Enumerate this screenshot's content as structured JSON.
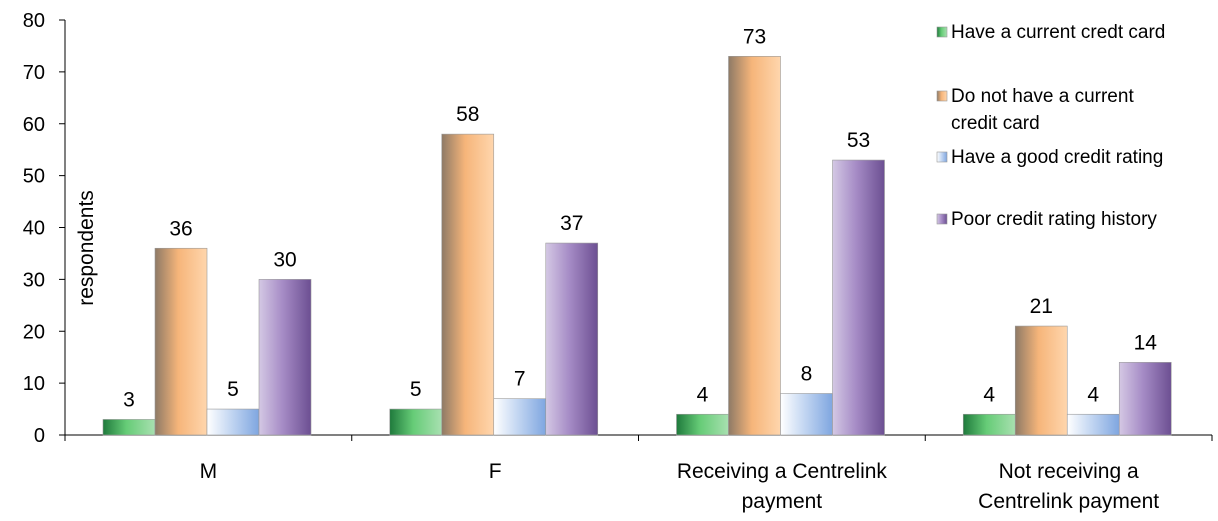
{
  "chart_data": {
    "type": "bar",
    "ylabel": "respondents",
    "xlabel": "",
    "ylim": [
      0,
      80
    ],
    "yticks": [
      0,
      10,
      20,
      30,
      40,
      50,
      60,
      70,
      80
    ],
    "categories": [
      [
        "M"
      ],
      [
        "F"
      ],
      [
        "Receiving a Centrelink",
        "payment"
      ],
      [
        "Not receiving a",
        "Centrelink payment"
      ]
    ],
    "series": [
      {
        "name": [
          "Have a current credt card"
        ],
        "values": [
          3,
          5,
          4,
          4
        ],
        "colors": [
          "#1f7a3c",
          "#66cc77",
          "#a8e0b0"
        ]
      },
      {
        "name": [
          "Do not have a current",
          "credit card"
        ],
        "values": [
          36,
          58,
          73,
          21
        ],
        "colors": [
          "#8e7a66",
          "#f6b57a",
          "#ffd6ad"
        ]
      },
      {
        "name": [
          "Have a good credit rating"
        ],
        "values": [
          5,
          7,
          8,
          4
        ],
        "colors": [
          "#ffffff",
          "#c4d7f2",
          "#7fa6e0"
        ]
      },
      {
        "name": [
          "Poor credit rating history"
        ],
        "values": [
          30,
          37,
          53,
          14
        ],
        "colors": [
          "#d4c8e4",
          "#a68cc6",
          "#6c4f92"
        ]
      }
    ],
    "data_labels": true,
    "legend_position": "right"
  }
}
